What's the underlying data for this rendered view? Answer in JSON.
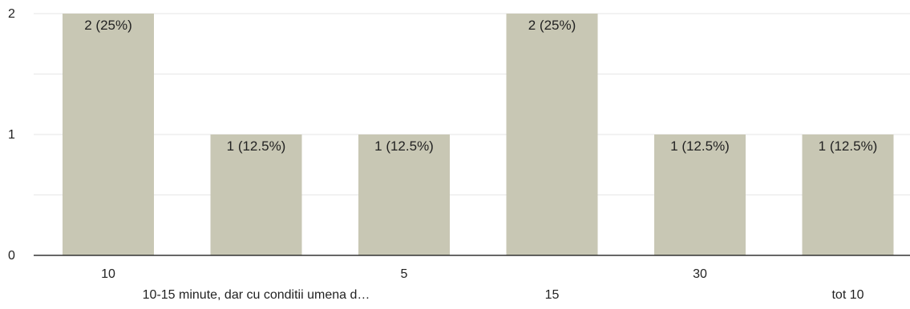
{
  "chart_data": {
    "type": "bar",
    "categories": [
      "10",
      "10-15 minute, dar cu conditii umena d…",
      "5",
      "15",
      "30",
      "tot 10"
    ],
    "values": [
      2,
      1,
      1,
      2,
      1,
      1
    ],
    "data_labels": [
      "2 (25%)",
      "1 (12.5%)",
      "1 (12.5%)",
      "2 (25%)",
      "1 (12.5%)",
      "1 (12.5%)"
    ],
    "y_ticks": [
      "0",
      "1",
      "2"
    ],
    "ylim": [
      0,
      2
    ],
    "grid": true,
    "colors": {
      "bar": "#c8c7b4",
      "grid": "#e6e6e6",
      "axis": "#333333",
      "text": "#222222"
    }
  }
}
